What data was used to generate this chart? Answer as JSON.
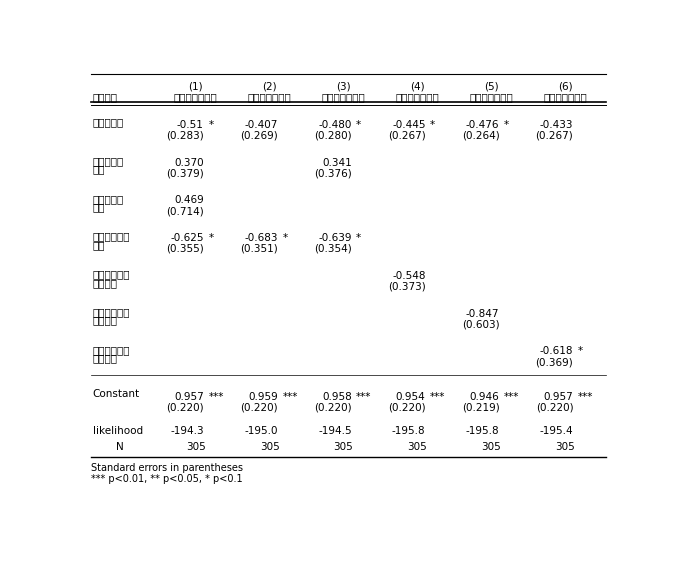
{
  "col_headers_top": [
    "(1)",
    "(2)",
    "(3)",
    "(4)",
    "(5)",
    "(6)"
  ],
  "col_headers_sub": [
    "米中対立の影響",
    "米中対立の影響",
    "米中対立の影響",
    "米中対立の影響",
    "米中対立の影響",
    "米中対立の影響"
  ],
  "row_label_header": "従属変数",
  "rows": [
    {
      "label_lines": [
        "取引ダミー"
      ],
      "coef": [
        "-0.51",
        "-0.407",
        "-0.480",
        "-0.445",
        "-0.476",
        "-0.433"
      ],
      "sig": [
        "*",
        "",
        "*",
        "*",
        "*",
        ""
      ],
      "se": [
        "(0.283)",
        "(0.269)",
        "(0.280)",
        "(0.267)",
        "(0.264)",
        "(0.267)"
      ]
    },
    {
      "label_lines": [
        "中国取引ダ",
        "ミー"
      ],
      "coef": [
        "0.370",
        "",
        "0.341",
        "",
        "",
        ""
      ],
      "sig": [
        "",
        "",
        "",
        "",
        "",
        ""
      ],
      "se": [
        "(0.379)",
        "",
        "(0.376)",
        "",
        "",
        ""
      ]
    },
    {
      "label_lines": [
        "米国取引ダ",
        "ミー"
      ],
      "coef": [
        "0.469",
        "",
        "",
        "",
        "",
        ""
      ],
      "sig": [
        "",
        "",
        "",
        "",
        "",
        ""
      ],
      "se": [
        "(0.714)",
        "",
        "",
        "",
        "",
        ""
      ]
    },
    {
      "label_lines": [
        "投資・資金ダ",
        "ミー"
      ],
      "coef": [
        "-0.625",
        "-0.683",
        "-0.639",
        "",
        "",
        ""
      ],
      "sig": [
        "*",
        "*",
        "*",
        "",
        "",
        ""
      ],
      "se": [
        "(0.355)",
        "(0.351)",
        "(0.354)",
        "",
        "",
        ""
      ]
    },
    {
      "label_lines": [
        "米国投資・資",
        "金ダミー"
      ],
      "coef": [
        "",
        "",
        "",
        "-0.548",
        "",
        ""
      ],
      "sig": [
        "",
        "",
        "",
        "",
        "",
        ""
      ],
      "se": [
        "",
        "",
        "",
        "(0.373)",
        "",
        ""
      ]
    },
    {
      "label_lines": [
        "中国投資・資",
        "金ダミー"
      ],
      "coef": [
        "",
        "",
        "",
        "",
        "-0.847",
        ""
      ],
      "sig": [
        "",
        "",
        "",
        "",
        "",
        ""
      ],
      "se": [
        "",
        "",
        "",
        "",
        "(0.603)",
        ""
      ]
    },
    {
      "label_lines": [
        "米中投資・資",
        "金ダミー"
      ],
      "coef": [
        "",
        "",
        "",
        "",
        "",
        "-0.618"
      ],
      "sig": [
        "",
        "",
        "",
        "",
        "",
        "*"
      ],
      "se": [
        "",
        "",
        "",
        "",
        "",
        "(0.369)"
      ]
    }
  ],
  "constant": {
    "label": "Constant",
    "coef": [
      "0.957",
      "0.959",
      "0.958",
      "0.954",
      "0.946",
      "0.957"
    ],
    "sig": [
      "***",
      "***",
      "***",
      "***",
      "***",
      "***"
    ],
    "se": [
      "(0.220)",
      "(0.220)",
      "(0.220)",
      "(0.220)",
      "(0.219)",
      "(0.220)"
    ]
  },
  "likelihood": {
    "label": "likelihood",
    "values": [
      "-194.3",
      "-195.0",
      "-194.5",
      "-195.8",
      "-195.8",
      "-195.4"
    ]
  },
  "n_row": {
    "label": "N",
    "values": [
      "305",
      "305",
      "305",
      "305",
      "305",
      "305"
    ]
  },
  "footnotes": [
    "Standard errors in parentheses",
    "*** p<0.01, ** p<0.05, * p<0.1"
  ]
}
